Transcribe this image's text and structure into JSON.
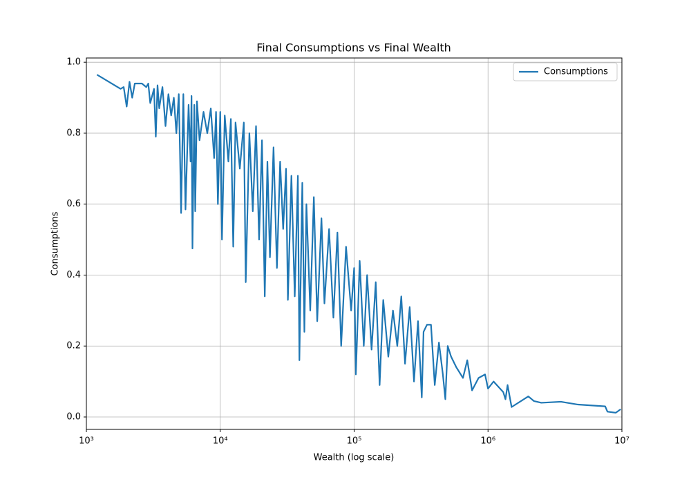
{
  "chart_data": {
    "type": "line",
    "title": "Final Consumptions vs Final Wealth",
    "x_label": "Wealth (log scale)",
    "y_label": "Consumptions",
    "xscale": "log",
    "grid": true,
    "legend": "upper right",
    "xlim": [
      1000,
      10000000
    ],
    "xticks": [
      {
        "value": 1000,
        "label": "10³"
      },
      {
        "value": 10000,
        "label": "10⁴"
      },
      {
        "value": 100000,
        "label": "10⁵"
      },
      {
        "value": 1000000,
        "label": "10⁶"
      },
      {
        "value": 10000000,
        "label": "10⁷"
      }
    ],
    "ylim": [
      -0.035,
      1.012
    ],
    "yticks": [
      {
        "value": 0,
        "label": "0.0"
      },
      0.2,
      0.4,
      0.6,
      0.8,
      {
        "value": 1,
        "label": "1.0"
      }
    ],
    "x": [
      1200,
      1800,
      1900,
      2000,
      2100,
      2200,
      2300,
      2600,
      2800,
      2900,
      3000,
      3200,
      3300,
      3400,
      3500,
      3700,
      3900,
      4100,
      4300,
      4500,
      4700,
      4900,
      5000,
      5100,
      5300,
      5500,
      5800,
      6000,
      6100,
      6200,
      6400,
      6500,
      6700,
      7000,
      7500,
      8000,
      8500,
      9000,
      9300,
      9600,
      10000,
      10300,
      10800,
      11500,
      12000,
      12500,
      13000,
      14000,
      15000,
      15500,
      16500,
      17500,
      18500,
      19500,
      20500,
      21500,
      22500,
      23500,
      25000,
      26500,
      28000,
      29500,
      31000,
      32000,
      34000,
      36000,
      38000,
      39000,
      41000,
      42500,
      44000,
      47000,
      50000,
      53000,
      57000,
      60000,
      65000,
      70000,
      75000,
      80000,
      87000,
      95000,
      100000,
      103000,
      110000,
      118000,
      125000,
      135000,
      145000,
      155000,
      165000,
      180000,
      195000,
      210000,
      225000,
      240000,
      260000,
      280000,
      300000,
      320000,
      330000,
      350000,
      375000,
      400000,
      430000,
      460000,
      480000,
      500000,
      530000,
      580000,
      650000,
      700000,
      760000,
      850000,
      950000,
      1000000,
      1100000,
      1300000,
      1350000,
      1400000,
      1500000,
      2000000,
      2200000,
      2500000,
      3500000,
      4700000,
      7500000,
      7800000,
      9000000,
      9800000
    ],
    "series": [
      {
        "name": "Consumptions",
        "color": "#1f77b4",
        "values": [
          0.965,
          0.925,
          0.93,
          0.875,
          0.945,
          0.9,
          0.94,
          0.94,
          0.93,
          0.94,
          0.885,
          0.925,
          0.79,
          0.935,
          0.87,
          0.93,
          0.82,
          0.91,
          0.85,
          0.9,
          0.8,
          0.91,
          0.75,
          0.575,
          0.91,
          0.585,
          0.88,
          0.72,
          0.905,
          0.475,
          0.88,
          0.58,
          0.89,
          0.78,
          0.86,
          0.8,
          0.87,
          0.73,
          0.86,
          0.6,
          0.86,
          0.5,
          0.85,
          0.72,
          0.84,
          0.48,
          0.83,
          0.7,
          0.83,
          0.38,
          0.8,
          0.58,
          0.82,
          0.5,
          0.78,
          0.34,
          0.72,
          0.45,
          0.76,
          0.42,
          0.72,
          0.53,
          0.7,
          0.33,
          0.68,
          0.34,
          0.68,
          0.16,
          0.66,
          0.24,
          0.6,
          0.3,
          0.62,
          0.27,
          0.56,
          0.32,
          0.53,
          0.28,
          0.52,
          0.2,
          0.48,
          0.3,
          0.42,
          0.12,
          0.44,
          0.2,
          0.4,
          0.19,
          0.38,
          0.09,
          0.33,
          0.17,
          0.3,
          0.2,
          0.34,
          0.15,
          0.31,
          0.1,
          0.27,
          0.055,
          0.24,
          0.26,
          0.26,
          0.09,
          0.21,
          0.12,
          0.05,
          0.2,
          0.17,
          0.14,
          0.11,
          0.16,
          0.075,
          0.11,
          0.12,
          0.08,
          0.1,
          0.07,
          0.05,
          0.09,
          0.028,
          0.058,
          0.045,
          0.04,
          0.043,
          0.035,
          0.03,
          0.015,
          0.012,
          0.022
        ]
      }
    ]
  }
}
